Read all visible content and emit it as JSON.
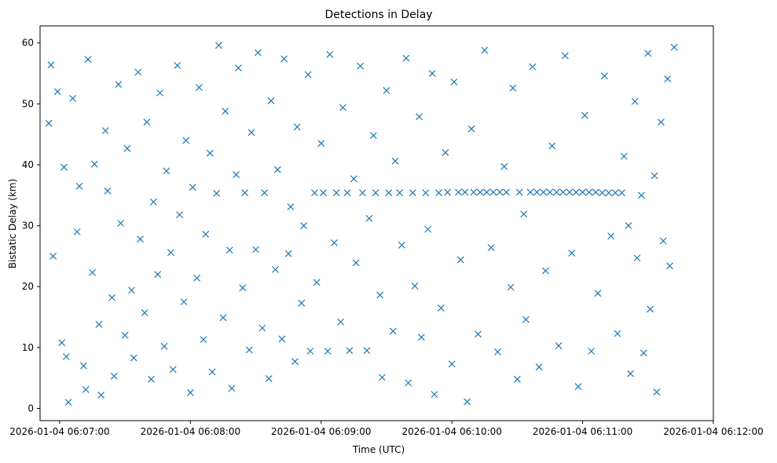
{
  "chart_data": {
    "type": "scatter",
    "title": "Detections in Delay",
    "xlabel": "Time (UTC)",
    "ylabel": "Bistatic Delay (km)",
    "marker": "x",
    "color": "#1f77b4",
    "grid": false,
    "x_ticks": [
      "2026-01-04 06:07:00",
      "2026-01-04 06:08:00",
      "2026-01-04 06:09:00",
      "2026-01-04 06:10:00",
      "2026-01-04 06:11:00",
      "2026-01-04 06:12:00"
    ],
    "y_ticks": [
      0,
      10,
      20,
      30,
      40,
      50,
      60
    ],
    "xlim": [
      "2026-01-04 06:06:51",
      "2026-01-04 06:12:00"
    ],
    "ylim": [
      -2.0,
      62.8
    ],
    "series": [
      {
        "points": [
          [
            "06:06:55",
            46.8
          ],
          [
            "06:06:56",
            56.4
          ],
          [
            "06:06:57",
            25.0
          ],
          [
            "06:06:59",
            52.0
          ],
          [
            "06:07:01",
            10.8
          ],
          [
            "06:07:02",
            39.6
          ],
          [
            "06:07:03",
            8.5
          ],
          [
            "06:07:04",
            1.0
          ],
          [
            "06:07:06",
            50.9
          ],
          [
            "06:07:08",
            29.0
          ],
          [
            "06:07:09",
            36.5
          ],
          [
            "06:07:11",
            7.0
          ],
          [
            "06:07:12",
            3.1
          ],
          [
            "06:07:13",
            57.3
          ],
          [
            "06:07:15",
            22.3
          ],
          [
            "06:07:16",
            40.1
          ],
          [
            "06:07:18",
            13.8
          ],
          [
            "06:07:19",
            2.2
          ],
          [
            "06:07:21",
            45.6
          ],
          [
            "06:07:22",
            35.7
          ],
          [
            "06:07:24",
            18.2
          ],
          [
            "06:07:25",
            5.3
          ],
          [
            "06:07:27",
            53.2
          ],
          [
            "06:07:28",
            30.4
          ],
          [
            "06:07:30",
            12.0
          ],
          [
            "06:07:31",
            42.7
          ],
          [
            "06:07:33",
            19.4
          ],
          [
            "06:07:34",
            8.3
          ],
          [
            "06:07:36",
            55.2
          ],
          [
            "06:07:37",
            27.8
          ],
          [
            "06:07:39",
            15.7
          ],
          [
            "06:07:40",
            47.0
          ],
          [
            "06:07:42",
            4.8
          ],
          [
            "06:07:43",
            33.9
          ],
          [
            "06:07:45",
            22.0
          ],
          [
            "06:07:46",
            51.8
          ],
          [
            "06:07:48",
            10.2
          ],
          [
            "06:07:49",
            39.0
          ],
          [
            "06:07:51",
            25.6
          ],
          [
            "06:07:52",
            6.4
          ],
          [
            "06:07:54",
            56.3
          ],
          [
            "06:07:55",
            31.8
          ],
          [
            "06:07:57",
            17.5
          ],
          [
            "06:07:58",
            44.0
          ],
          [
            "06:08:00",
            2.6
          ],
          [
            "06:08:01",
            36.3
          ],
          [
            "06:08:03",
            21.4
          ],
          [
            "06:08:04",
            52.7
          ],
          [
            "06:08:06",
            11.3
          ],
          [
            "06:08:07",
            28.6
          ],
          [
            "06:08:09",
            41.9
          ],
          [
            "06:08:10",
            6.0
          ],
          [
            "06:08:12",
            35.3
          ],
          [
            "06:08:13",
            59.6
          ],
          [
            "06:08:15",
            14.9
          ],
          [
            "06:08:16",
            48.8
          ],
          [
            "06:08:18",
            26.0
          ],
          [
            "06:08:19",
            3.3
          ],
          [
            "06:08:21",
            38.4
          ],
          [
            "06:08:22",
            55.9
          ],
          [
            "06:08:24",
            19.8
          ],
          [
            "06:08:25",
            35.4
          ],
          [
            "06:08:27",
            9.6
          ],
          [
            "06:08:28",
            45.3
          ],
          [
            "06:08:30",
            26.1
          ],
          [
            "06:08:31",
            58.4
          ],
          [
            "06:08:33",
            13.2
          ],
          [
            "06:08:34",
            35.4
          ],
          [
            "06:08:36",
            4.9
          ],
          [
            "06:08:37",
            50.5
          ],
          [
            "06:08:39",
            22.8
          ],
          [
            "06:08:40",
            39.2
          ],
          [
            "06:08:42",
            11.4
          ],
          [
            "06:08:43",
            57.4
          ],
          [
            "06:08:45",
            25.4
          ],
          [
            "06:08:46",
            33.1
          ],
          [
            "06:08:48",
            7.7
          ],
          [
            "06:08:49",
            46.2
          ],
          [
            "06:08:51",
            17.3
          ],
          [
            "06:08:52",
            30.0
          ],
          [
            "06:08:54",
            54.8
          ],
          [
            "06:08:55",
            9.4
          ],
          [
            "06:08:57",
            35.4
          ],
          [
            "06:08:58",
            20.7
          ],
          [
            "06:09:00",
            43.5
          ],
          [
            "06:09:01",
            35.4
          ],
          [
            "06:09:03",
            9.4
          ],
          [
            "06:09:04",
            58.1
          ],
          [
            "06:09:06",
            27.2
          ],
          [
            "06:09:07",
            35.4
          ],
          [
            "06:09:09",
            14.2
          ],
          [
            "06:09:10",
            49.4
          ],
          [
            "06:09:12",
            35.4
          ],
          [
            "06:09:13",
            9.5
          ],
          [
            "06:09:15",
            37.7
          ],
          [
            "06:09:16",
            23.9
          ],
          [
            "06:09:18",
            56.2
          ],
          [
            "06:09:19",
            35.4
          ],
          [
            "06:09:21",
            9.5
          ],
          [
            "06:09:22",
            31.2
          ],
          [
            "06:09:24",
            44.8
          ],
          [
            "06:09:25",
            35.4
          ],
          [
            "06:09:27",
            18.6
          ],
          [
            "06:09:28",
            5.1
          ],
          [
            "06:09:30",
            52.2
          ],
          [
            "06:09:31",
            35.4
          ],
          [
            "06:09:33",
            12.7
          ],
          [
            "06:09:34",
            40.6
          ],
          [
            "06:09:36",
            35.4
          ],
          [
            "06:09:37",
            26.8
          ],
          [
            "06:09:39",
            57.5
          ],
          [
            "06:09:40",
            4.2
          ],
          [
            "06:09:42",
            35.4
          ],
          [
            "06:09:43",
            20.1
          ],
          [
            "06:09:45",
            47.9
          ],
          [
            "06:09:46",
            11.7
          ],
          [
            "06:09:48",
            35.4
          ],
          [
            "06:09:49",
            29.4
          ],
          [
            "06:09:51",
            55.0
          ],
          [
            "06:09:52",
            2.3
          ],
          [
            "06:09:54",
            35.4
          ],
          [
            "06:09:55",
            16.5
          ],
          [
            "06:09:57",
            42.0
          ],
          [
            "06:09:58",
            35.5
          ],
          [
            "06:10:00",
            7.3
          ],
          [
            "06:10:01",
            53.6
          ],
          [
            "06:10:03",
            35.5
          ],
          [
            "06:10:04",
            24.4
          ],
          [
            "06:10:06",
            35.5
          ],
          [
            "06:10:07",
            1.1
          ],
          [
            "06:10:09",
            45.9
          ],
          [
            "06:10:10",
            35.5
          ],
          [
            "06:10:12",
            12.2
          ],
          [
            "06:10:13",
            35.5
          ],
          [
            "06:10:15",
            58.8
          ],
          [
            "06:10:16",
            35.5
          ],
          [
            "06:10:18",
            26.4
          ],
          [
            "06:10:19",
            35.5
          ],
          [
            "06:10:21",
            9.3
          ],
          [
            "06:10:22",
            35.5
          ],
          [
            "06:10:24",
            39.7
          ],
          [
            "06:10:25",
            35.5
          ],
          [
            "06:10:27",
            19.9
          ],
          [
            "06:10:28",
            52.6
          ],
          [
            "06:10:30",
            4.8
          ],
          [
            "06:10:31",
            35.5
          ],
          [
            "06:10:33",
            31.9
          ],
          [
            "06:10:34",
            14.6
          ],
          [
            "06:10:36",
            35.5
          ],
          [
            "06:10:37",
            56.1
          ],
          [
            "06:10:39",
            35.5
          ],
          [
            "06:10:40",
            6.8
          ],
          [
            "06:10:42",
            35.5
          ],
          [
            "06:10:43",
            22.6
          ],
          [
            "06:10:45",
            35.5
          ],
          [
            "06:10:46",
            43.1
          ],
          [
            "06:10:48",
            35.5
          ],
          [
            "06:10:49",
            10.3
          ],
          [
            "06:10:51",
            35.5
          ],
          [
            "06:10:52",
            57.9
          ],
          [
            "06:10:54",
            35.5
          ],
          [
            "06:10:55",
            25.5
          ],
          [
            "06:10:57",
            35.5
          ],
          [
            "06:10:58",
            3.6
          ],
          [
            "06:11:00",
            35.5
          ],
          [
            "06:11:01",
            48.1
          ],
          [
            "06:11:03",
            35.5
          ],
          [
            "06:11:04",
            9.4
          ],
          [
            "06:11:06",
            35.5
          ],
          [
            "06:11:07",
            18.9
          ],
          [
            "06:11:09",
            35.4
          ],
          [
            "06:11:10",
            54.6
          ],
          [
            "06:11:12",
            35.4
          ],
          [
            "06:11:13",
            28.3
          ],
          [
            "06:11:15",
            35.4
          ],
          [
            "06:11:16",
            12.3
          ],
          [
            "06:11:18",
            35.4
          ],
          [
            "06:11:19",
            41.4
          ],
          [
            "06:11:21",
            30.0
          ],
          [
            "06:11:22",
            5.7
          ],
          [
            "06:11:24",
            50.4
          ],
          [
            "06:11:25",
            24.7
          ],
          [
            "06:11:27",
            35.0
          ],
          [
            "06:11:28",
            9.1
          ],
          [
            "06:11:30",
            58.3
          ],
          [
            "06:11:31",
            16.3
          ],
          [
            "06:11:33",
            38.2
          ],
          [
            "06:11:34",
            2.7
          ],
          [
            "06:11:36",
            47.0
          ],
          [
            "06:11:37",
            27.5
          ],
          [
            "06:11:39",
            54.1
          ],
          [
            "06:11:40",
            23.4
          ],
          [
            "06:11:42",
            59.3
          ]
        ]
      }
    ]
  }
}
